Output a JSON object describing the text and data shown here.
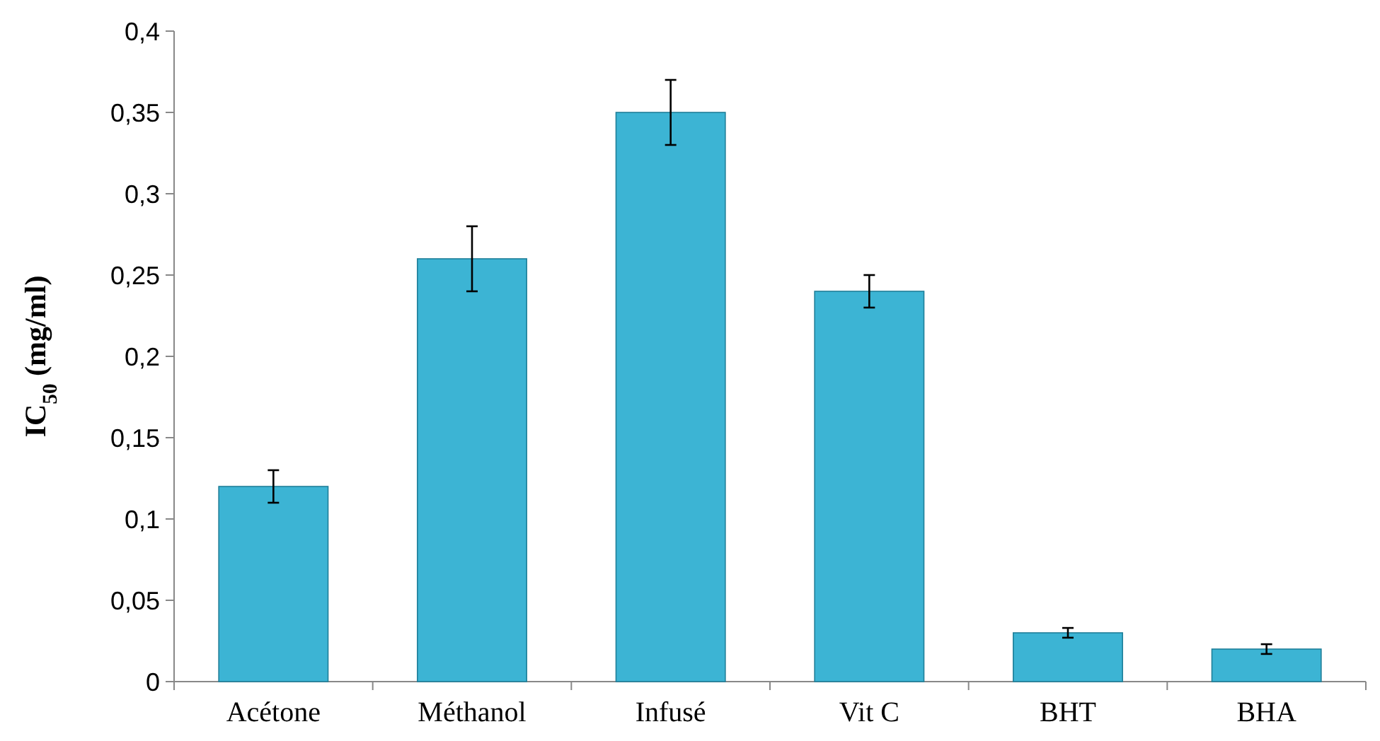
{
  "chart_data": {
    "type": "bar",
    "ylabel": "IC$_{50}$ (mg/ml)",
    "categories": [
      "Acétone",
      "Méthanol",
      "Infusé",
      "Vit C",
      "BHT",
      "BHA"
    ],
    "values": [
      0.12,
      0.26,
      0.35,
      0.24,
      0.03,
      0.02
    ],
    "errors": [
      0.01,
      0.02,
      0.02,
      0.01,
      0.003,
      0.003
    ],
    "color": "#3cb4d4",
    "ylim": [
      0,
      0.4
    ],
    "yticks": [
      {
        "value": 0,
        "label": "0"
      },
      {
        "value": 0.05,
        "label": "0,05"
      },
      {
        "value": 0.1,
        "label": "0,1"
      },
      {
        "value": 0.15,
        "label": "0,15"
      },
      {
        "value": 0.2,
        "label": "0,2"
      },
      {
        "value": 0.25,
        "label": "0,25"
      },
      {
        "value": 0.3,
        "label": "0,3"
      },
      {
        "value": 0.35,
        "label": "0,35"
      },
      {
        "value": 0.4,
        "label": "0,4"
      }
    ],
    "grid": false
  }
}
